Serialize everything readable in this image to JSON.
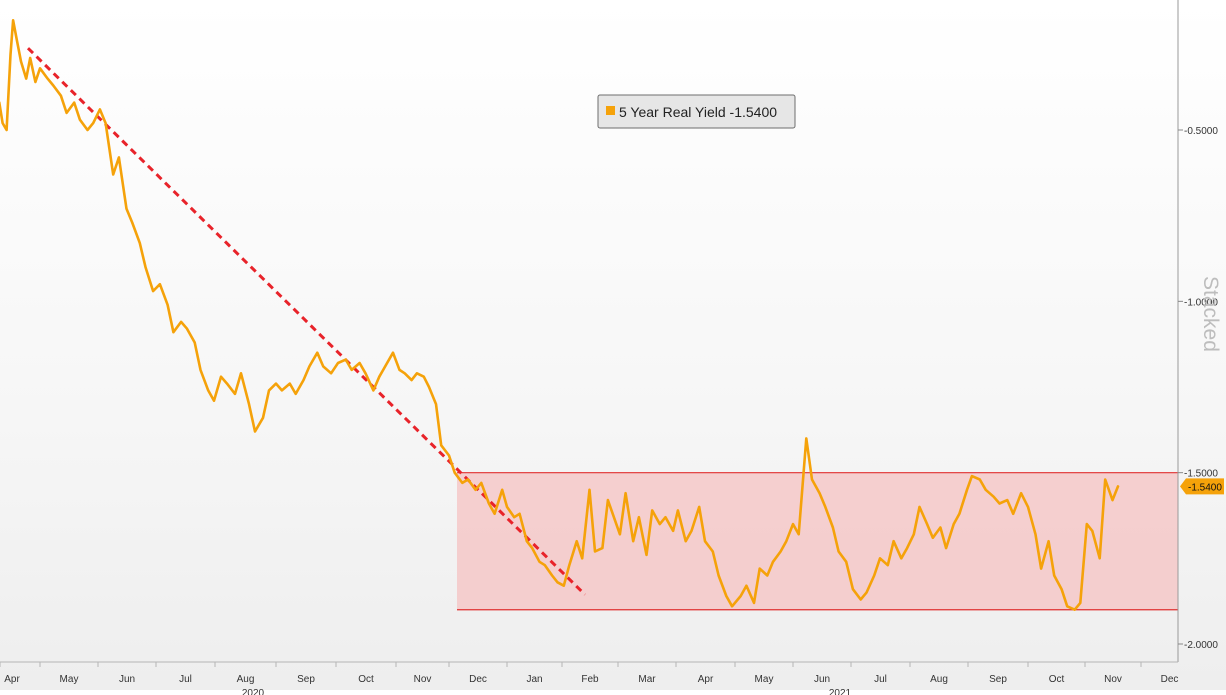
{
  "chart_data": {
    "type": "line",
    "title": "",
    "xlabel": "",
    "ylabel": "",
    "legend": {
      "label": "5 Year Real Yield",
      "last_value": "-1.5400",
      "placement": "top-center"
    },
    "watermark": "Stacked",
    "last_value_tag": "-1.5400",
    "y_ticks": [
      "-0.5000",
      "-1.0000",
      "-1.5000",
      "-2.0000"
    ],
    "ylim": [
      -2.0,
      -0.2
    ],
    "x_ticks": [
      "Apr",
      "May",
      "Jun",
      "Jul",
      "Aug",
      "Sep",
      "Oct",
      "Nov",
      "Dec",
      "Jan",
      "Feb",
      "Mar",
      "Apr",
      "May",
      "Jun",
      "Jul",
      "Aug",
      "Sep",
      "Oct",
      "Nov",
      "Dec"
    ],
    "year_labels": [
      "2020",
      "2021"
    ],
    "range_band": {
      "from": "2020-12",
      "to": "2021-12",
      "low": -1.9,
      "high": -1.5,
      "color": "#f4c8c8",
      "edge_color": "#e03030"
    },
    "trendline": {
      "from": [
        "2020-04",
        -0.27
      ],
      "to": [
        "2021-02",
        -1.85
      ],
      "color": "#e8232a",
      "style": "dashed"
    },
    "series": [
      {
        "name": "5 Year Real Yield",
        "color": "#f5a20a",
        "points": [
          [
            "2020-03-31",
            -0.42
          ],
          [
            "2020-04-03",
            -0.48
          ],
          [
            "2020-04-06",
            -0.5
          ],
          [
            "2020-04-09",
            -0.28
          ],
          [
            "2020-04-11",
            -0.18
          ],
          [
            "2020-04-14",
            -0.24
          ],
          [
            "2020-04-17",
            -0.3
          ],
          [
            "2020-04-21",
            -0.35
          ],
          [
            "2020-04-24",
            -0.29
          ],
          [
            "2020-04-28",
            -0.36
          ],
          [
            "2020-05-01",
            -0.32
          ],
          [
            "2020-05-05",
            -0.35
          ],
          [
            "2020-05-08",
            -0.37
          ],
          [
            "2020-05-12",
            -0.4
          ],
          [
            "2020-05-15",
            -0.45
          ],
          [
            "2020-05-19",
            -0.42
          ],
          [
            "2020-05-22",
            -0.47
          ],
          [
            "2020-05-26",
            -0.5
          ],
          [
            "2020-05-29",
            -0.48
          ],
          [
            "2020-06-02",
            -0.44
          ],
          [
            "2020-06-05",
            -0.48
          ],
          [
            "2020-06-09",
            -0.63
          ],
          [
            "2020-06-12",
            -0.58
          ],
          [
            "2020-06-16",
            -0.73
          ],
          [
            "2020-06-19",
            -0.77
          ],
          [
            "2020-06-23",
            -0.83
          ],
          [
            "2020-06-26",
            -0.9
          ],
          [
            "2020-06-30",
            -0.97
          ],
          [
            "2020-07-03",
            -0.95
          ],
          [
            "2020-07-07",
            -1.01
          ],
          [
            "2020-07-10",
            -1.09
          ],
          [
            "2020-07-14",
            -1.06
          ],
          [
            "2020-07-17",
            -1.08
          ],
          [
            "2020-07-21",
            -1.12
          ],
          [
            "2020-07-24",
            -1.2
          ],
          [
            "2020-07-28",
            -1.26
          ],
          [
            "2020-07-31",
            -1.29
          ],
          [
            "2020-08-04",
            -1.22
          ],
          [
            "2020-08-07",
            -1.24
          ],
          [
            "2020-08-11",
            -1.27
          ],
          [
            "2020-08-14",
            -1.21
          ],
          [
            "2020-08-18",
            -1.3
          ],
          [
            "2020-08-21",
            -1.38
          ],
          [
            "2020-08-25",
            -1.34
          ],
          [
            "2020-08-28",
            -1.26
          ],
          [
            "2020-09-01",
            -1.24
          ],
          [
            "2020-09-04",
            -1.26
          ],
          [
            "2020-09-08",
            -1.24
          ],
          [
            "2020-09-11",
            -1.27
          ],
          [
            "2020-09-15",
            -1.23
          ],
          [
            "2020-09-18",
            -1.19
          ],
          [
            "2020-09-22",
            -1.15
          ],
          [
            "2020-09-25",
            -1.19
          ],
          [
            "2020-09-29",
            -1.21
          ],
          [
            "2020-10-02",
            -1.18
          ],
          [
            "2020-10-06",
            -1.17
          ],
          [
            "2020-10-09",
            -1.2
          ],
          [
            "2020-10-13",
            -1.18
          ],
          [
            "2020-10-16",
            -1.21
          ],
          [
            "2020-10-20",
            -1.26
          ],
          [
            "2020-10-23",
            -1.22
          ],
          [
            "2020-10-27",
            -1.18
          ],
          [
            "2020-10-30",
            -1.15
          ],
          [
            "2020-11-03",
            -1.2
          ],
          [
            "2020-11-06",
            -1.21
          ],
          [
            "2020-11-10",
            -1.23
          ],
          [
            "2020-11-13",
            -1.21
          ],
          [
            "2020-11-17",
            -1.22
          ],
          [
            "2020-11-20",
            -1.25
          ],
          [
            "2020-11-24",
            -1.3
          ],
          [
            "2020-11-27",
            -1.42
          ],
          [
            "2020-12-01",
            -1.45
          ],
          [
            "2020-12-04",
            -1.5
          ],
          [
            "2020-12-08",
            -1.53
          ],
          [
            "2020-12-11",
            -1.52
          ],
          [
            "2020-12-15",
            -1.55
          ],
          [
            "2020-12-18",
            -1.53
          ],
          [
            "2020-12-22",
            -1.59
          ],
          [
            "2020-12-25",
            -1.62
          ],
          [
            "2020-12-29",
            -1.55
          ],
          [
            "2021-01-01",
            -1.6
          ],
          [
            "2021-01-05",
            -1.63
          ],
          [
            "2021-01-08",
            -1.62
          ],
          [
            "2021-01-12",
            -1.7
          ],
          [
            "2021-01-15",
            -1.72
          ],
          [
            "2021-01-19",
            -1.76
          ],
          [
            "2021-01-22",
            -1.77
          ],
          [
            "2021-01-26",
            -1.8
          ],
          [
            "2021-01-29",
            -1.82
          ],
          [
            "2021-02-02",
            -1.83
          ],
          [
            "2021-02-05",
            -1.77
          ],
          [
            "2021-02-09",
            -1.7
          ],
          [
            "2021-02-12",
            -1.75
          ],
          [
            "2021-02-16",
            -1.55
          ],
          [
            "2021-02-19",
            -1.73
          ],
          [
            "2021-02-23",
            -1.72
          ],
          [
            "2021-02-26",
            -1.58
          ],
          [
            "2021-03-02",
            -1.68
          ],
          [
            "2021-03-05",
            -1.56
          ],
          [
            "2021-03-09",
            -1.7
          ],
          [
            "2021-03-12",
            -1.63
          ],
          [
            "2021-03-16",
            -1.74
          ],
          [
            "2021-03-19",
            -1.61
          ],
          [
            "2021-03-23",
            -1.65
          ],
          [
            "2021-03-26",
            -1.63
          ],
          [
            "2021-03-30",
            -1.67
          ],
          [
            "2021-04-02",
            -1.61
          ],
          [
            "2021-04-06",
            -1.7
          ],
          [
            "2021-04-09",
            -1.67
          ],
          [
            "2021-04-13",
            -1.6
          ],
          [
            "2021-04-16",
            -1.7
          ],
          [
            "2021-04-20",
            -1.73
          ],
          [
            "2021-04-23",
            -1.8
          ],
          [
            "2021-04-27",
            -1.86
          ],
          [
            "2021-04-30",
            -1.89
          ],
          [
            "2021-05-04",
            -1.86
          ],
          [
            "2021-05-07",
            -1.83
          ],
          [
            "2021-05-11",
            -1.88
          ],
          [
            "2021-05-14",
            -1.78
          ],
          [
            "2021-05-18",
            -1.8
          ],
          [
            "2021-05-21",
            -1.76
          ],
          [
            "2021-05-25",
            -1.73
          ],
          [
            "2021-05-28",
            -1.7
          ],
          [
            "2021-06-01",
            -1.65
          ],
          [
            "2021-06-04",
            -1.68
          ],
          [
            "2021-06-08",
            -1.4
          ],
          [
            "2021-06-11",
            -1.52
          ],
          [
            "2021-06-15",
            -1.56
          ],
          [
            "2021-06-18",
            -1.6
          ],
          [
            "2021-06-22",
            -1.66
          ],
          [
            "2021-06-25",
            -1.73
          ],
          [
            "2021-06-29",
            -1.76
          ],
          [
            "2021-07-02",
            -1.84
          ],
          [
            "2021-07-06",
            -1.87
          ],
          [
            "2021-07-09",
            -1.85
          ],
          [
            "2021-07-13",
            -1.8
          ],
          [
            "2021-07-16",
            -1.75
          ],
          [
            "2021-07-20",
            -1.77
          ],
          [
            "2021-07-23",
            -1.7
          ],
          [
            "2021-07-27",
            -1.75
          ],
          [
            "2021-07-30",
            -1.72
          ],
          [
            "2021-08-03",
            -1.68
          ],
          [
            "2021-08-06",
            -1.6
          ],
          [
            "2021-08-10",
            -1.65
          ],
          [
            "2021-08-13",
            -1.69
          ],
          [
            "2021-08-17",
            -1.66
          ],
          [
            "2021-08-20",
            -1.72
          ],
          [
            "2021-08-24",
            -1.65
          ],
          [
            "2021-08-27",
            -1.62
          ],
          [
            "2021-08-31",
            -1.55
          ],
          [
            "2021-09-03",
            -1.51
          ],
          [
            "2021-09-07",
            -1.52
          ],
          [
            "2021-09-10",
            -1.55
          ],
          [
            "2021-09-14",
            -1.57
          ],
          [
            "2021-09-17",
            -1.59
          ],
          [
            "2021-09-21",
            -1.58
          ],
          [
            "2021-09-24",
            -1.62
          ],
          [
            "2021-09-28",
            -1.56
          ],
          [
            "2021-10-01",
            -1.6
          ],
          [
            "2021-10-05",
            -1.68
          ],
          [
            "2021-10-08",
            -1.78
          ],
          [
            "2021-10-12",
            -1.7
          ],
          [
            "2021-10-15",
            -1.8
          ],
          [
            "2021-10-19",
            -1.84
          ],
          [
            "2021-10-22",
            -1.89
          ],
          [
            "2021-10-26",
            -1.9
          ],
          [
            "2021-10-29",
            -1.88
          ],
          [
            "2021-11-02",
            -1.65
          ],
          [
            "2021-11-05",
            -1.67
          ],
          [
            "2021-11-09",
            -1.75
          ],
          [
            "2021-11-12",
            -1.52
          ],
          [
            "2021-11-16",
            -1.58
          ],
          [
            "2021-11-19",
            -1.54
          ]
        ]
      }
    ]
  }
}
